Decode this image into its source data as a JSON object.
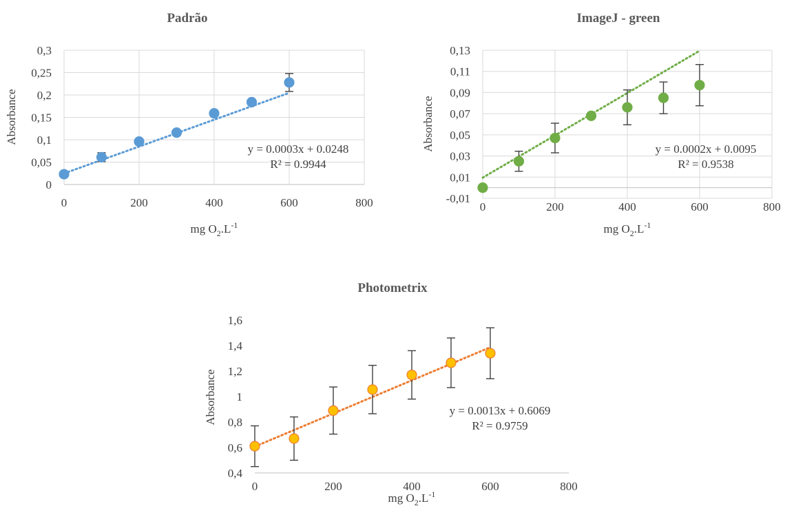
{
  "chart_data": [
    {
      "type": "scatter",
      "title": "Padrão",
      "xlabel": "mg O2.L-1",
      "xlabel_parts": {
        "base": "mg O",
        "sub": "2",
        "mid": ".L",
        "sup": "-1"
      },
      "ylabel": "Absorbance",
      "xlim": [
        0,
        800
      ],
      "ylim": [
        0,
        0.3
      ],
      "x_ticks": [
        0,
        200,
        400,
        600,
        800
      ],
      "x_tick_labels": [
        "0",
        "200",
        "400",
        "600",
        "800"
      ],
      "y_ticks": [
        0,
        0.05,
        0.1,
        0.15,
        0.2,
        0.25,
        0.3
      ],
      "y_tick_labels": [
        "0",
        "0,05",
        "0,1",
        "0,15",
        "0,2",
        "0,25",
        "0,3"
      ],
      "grid": true,
      "series": [
        {
          "x": [
            0,
            100,
            200,
            300,
            400,
            500,
            600
          ],
          "y": [
            0.023,
            0.061,
            0.096,
            0.116,
            0.159,
            0.184,
            0.228
          ],
          "error": [
            0,
            0.01,
            0,
            0,
            0,
            0,
            0.02
          ],
          "color": "#5b9bd5",
          "marker_edge": "#5b9bd5"
        }
      ],
      "trendline": {
        "slope": 0.0003,
        "intercept": 0.0248,
        "x_range": [
          0,
          600
        ],
        "color": "#5b9bd5",
        "equation": "y = 0.0003x + 0.0248",
        "r2": "R² = 0.9944"
      }
    },
    {
      "type": "scatter",
      "title": "ImageJ - green",
      "xlabel": "mg O2.L-1",
      "xlabel_parts": {
        "base": "mg O",
        "sub": "2",
        "mid": ".L",
        "sup": "-1"
      },
      "ylabel": "Absorbance",
      "xlim": [
        0,
        800
      ],
      "ylim": [
        -0.01,
        0.13
      ],
      "x_ticks": [
        0,
        200,
        400,
        600,
        800
      ],
      "x_tick_labels": [
        "0",
        "200",
        "400",
        "600",
        "800"
      ],
      "y_ticks": [
        -0.01,
        0.01,
        0.03,
        0.05,
        0.07,
        0.09,
        0.11,
        0.13
      ],
      "y_tick_labels": [
        "-0,01",
        "0,01",
        "0,03",
        "0,05",
        "0,07",
        "0,09",
        "0,11",
        "0,13"
      ],
      "grid": true,
      "series": [
        {
          "x": [
            0,
            100,
            200,
            300,
            400,
            500,
            600
          ],
          "y": [
            0.0,
            0.025,
            0.047,
            0.068,
            0.076,
            0.085,
            0.097
          ],
          "error": [
            0,
            0.0095,
            0.014,
            0,
            0.0165,
            0.015,
            0.0195
          ],
          "color": "#70ad47",
          "marker_edge": "#70ad47"
        }
      ],
      "trendline": {
        "slope": 0.0002,
        "intercept": 0.0095,
        "x_range": [
          0,
          600
        ],
        "color": "#70ad47",
        "equation": "y = 0.0002x + 0.0095",
        "r2": "R² = 0.9538"
      }
    },
    {
      "type": "scatter",
      "title": "Photometrix",
      "xlabel": "mg O2.L-1",
      "xlabel_parts": {
        "base": "mg O",
        "sub": "2",
        "mid": ".L",
        "sup": "-1"
      },
      "ylabel": "Absorbance",
      "xlim": [
        0,
        800
      ],
      "ylim": [
        0.4,
        1.6
      ],
      "x_ticks": [
        0,
        200,
        400,
        600,
        800
      ],
      "x_tick_labels": [
        "0",
        "200",
        "400",
        "600",
        "800"
      ],
      "y_ticks": [
        0.4,
        0.6,
        0.8,
        1.0,
        1.2,
        1.4,
        1.6
      ],
      "y_tick_labels": [
        "0,4",
        "0,6",
        "0,8",
        "1",
        "1,2",
        "1,4",
        "1,6"
      ],
      "grid": false,
      "series": [
        {
          "x": [
            0,
            100,
            200,
            300,
            400,
            500,
            600
          ],
          "y": [
            0.61,
            0.67,
            0.89,
            1.055,
            1.17,
            1.265,
            1.34
          ],
          "error": [
            0.16,
            0.17,
            0.185,
            0.19,
            0.19,
            0.195,
            0.2
          ],
          "color": "#ffc000",
          "marker_edge": "#ed7d31"
        }
      ],
      "trendline": {
        "slope": 0.0013,
        "intercept": 0.6069,
        "x_range": [
          0,
          600
        ],
        "color": "#ed7d31",
        "equation": "y = 0.0013x + 0.6069",
        "r2": "R² = 0.9759"
      }
    }
  ]
}
